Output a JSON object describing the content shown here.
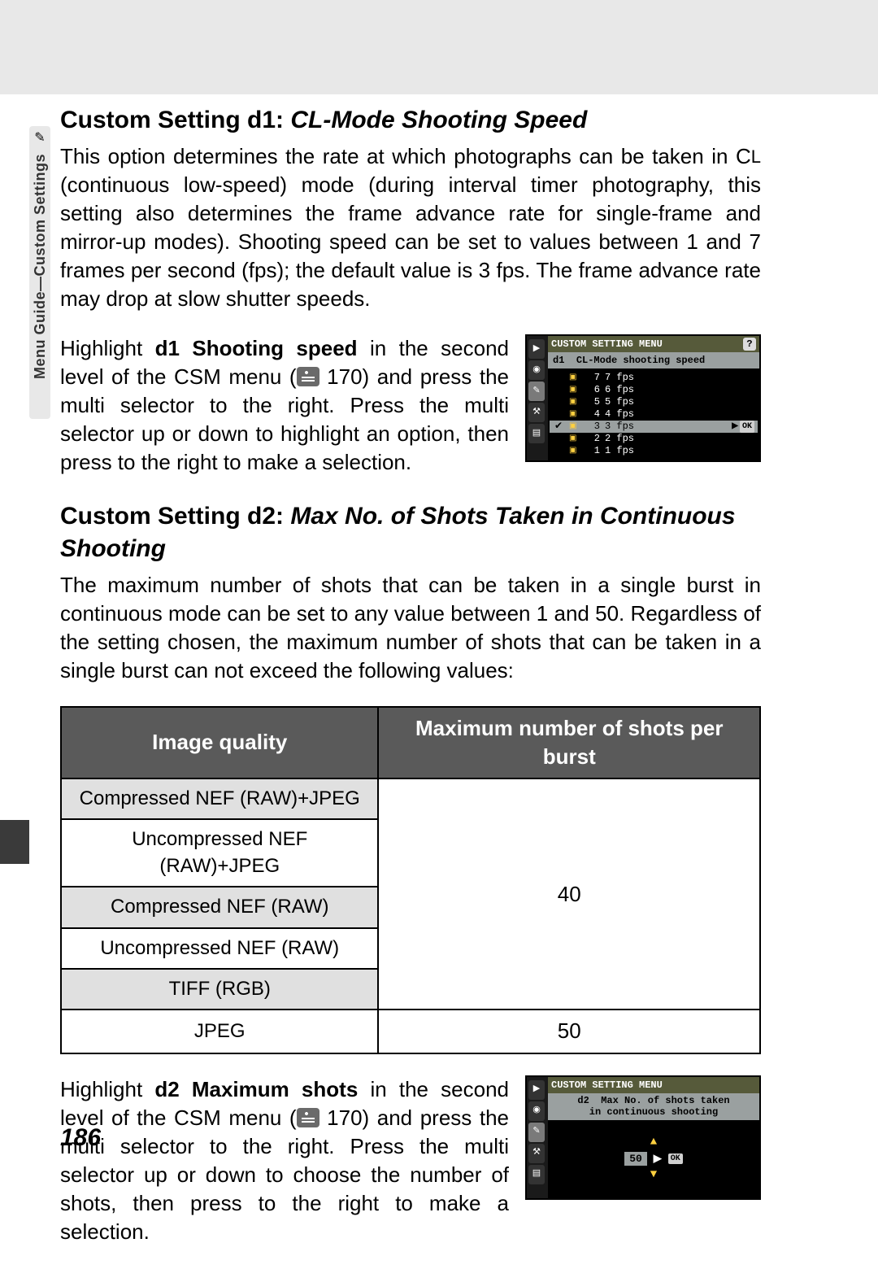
{
  "side_tab": {
    "label": "Menu Guide—Custom Settings",
    "icon_glyph": "✎"
  },
  "d1": {
    "heading_prefix": "Custom Setting d1: ",
    "heading_italic": "CL-Mode Shooting Speed",
    "body": "This option determines the rate at which photographs can be taken in C",
    "body_smallcap": "L",
    "body2": " (continuous low-speed) mode (during interval timer photography, this setting also determines the frame advance rate for single-frame and mirror-up modes).  Shooting speed can be set to values between 1 and 7 frames per second (fps); the default value is 3 fps.  The frame advance rate may drop at slow shutter speeds.",
    "instr_pre": "Highlight ",
    "instr_bold": "d1 Shooting speed",
    "instr_mid": " in the second level of the CSM menu (",
    "instr_page": " 170) and press the multi selector to the right.  Press the multi selector up or down to highlight an option, then press to the right to make a selection."
  },
  "d2": {
    "heading_prefix": "Custom Setting d2: ",
    "heading_italic": "Max No. of Shots Taken in Continuous Shooting",
    "body": "The maximum number of shots that can be taken in a single burst in continuous mode can be set to any value between 1 and 50.  Regardless of the setting chosen, the maximum number of shots that can be taken in a single burst can not exceed the following values:",
    "instr_pre": "Highlight ",
    "instr_bold": "d2 Maximum shots",
    "instr_mid": " in the second level of the CSM menu (",
    "instr_page": " 170) and press the multi selector to the right.  Press the multi selector up or down to choose the number of shots, then press to the right to make a selection."
  },
  "table": {
    "col1": "Image quality",
    "col2": "Maximum number of shots per burst",
    "rows": [
      "Compressed NEF (RAW)+JPEG",
      "Uncompressed NEF (RAW)+JPEG",
      "Compressed NEF (RAW)",
      "Uncompressed NEF (RAW)",
      "TIFF (RGB)",
      "JPEG"
    ],
    "val_top": "40",
    "val_bot": "50"
  },
  "lcd1": {
    "title": "CUSTOM SETTING MENU",
    "subtitle_prefix": "d1",
    "subtitle": "CL-Mode shooting speed",
    "options": [
      {
        "n": "7",
        "l": "7 fps"
      },
      {
        "n": "6",
        "l": "6 fps"
      },
      {
        "n": "5",
        "l": "5 fps"
      },
      {
        "n": "4",
        "l": "4 fps"
      },
      {
        "n": "3",
        "l": "3 fps",
        "sel": true
      },
      {
        "n": "2",
        "l": "2 fps"
      },
      {
        "n": "1",
        "l": "1 fps"
      }
    ],
    "ok": "OK"
  },
  "lcd2": {
    "title": "CUSTOM SETTING MENU",
    "subtitle_prefix": "d2",
    "subtitle_l1": "Max No. of shots taken",
    "subtitle_l2": "in continuous shooting",
    "value": "50",
    "ok": "OK"
  },
  "page_number": "186",
  "colors": {
    "grey_band": "#e8e8e8",
    "table_header_bg": "#5a5a5a",
    "table_shade": "#e0e0e0",
    "lcd_title_bg": "#565a3a",
    "lcd_sel_bg": "#9aa0a0",
    "lcd_accent": "#ffd040"
  }
}
